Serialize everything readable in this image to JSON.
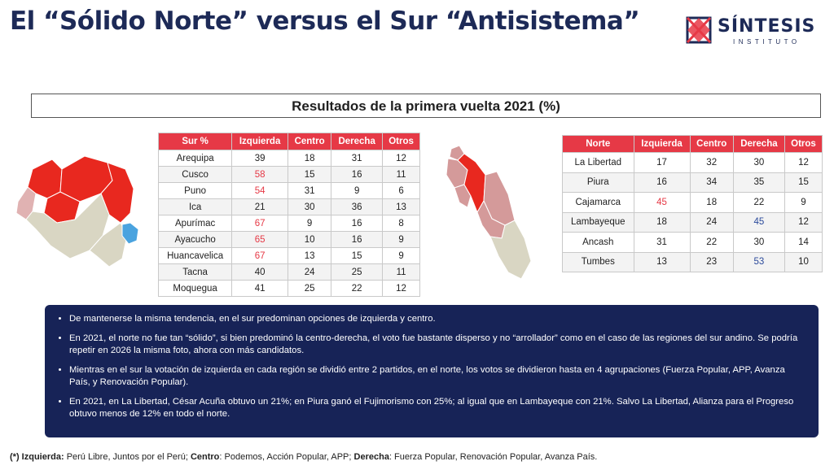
{
  "header": {
    "title": "El “Sólido Norte” versus el Sur “Antisistema”",
    "logo_name": "SÍNTESIS",
    "logo_sub": "INSTITUTO"
  },
  "subtitle": "Resultados de la primera vuelta 2021 (%)",
  "colors": {
    "accent": "#e63946",
    "navy": "#172357",
    "highlight_blue": "#2b4a9b"
  },
  "south_table": {
    "headers": [
      "Sur %",
      "Izquierda",
      "Centro",
      "Derecha",
      "Otros"
    ],
    "rows": [
      [
        "Arequipa",
        "39",
        "18",
        "31",
        "12"
      ],
      [
        "Cusco",
        "58",
        "15",
        "16",
        "11"
      ],
      [
        "Puno",
        "54",
        "31",
        "9",
        "6"
      ],
      [
        "Ica",
        "21",
        "30",
        "36",
        "13"
      ],
      [
        "Apurímac",
        "67",
        "9",
        "16",
        "8"
      ],
      [
        "Ayacucho",
        "65",
        "10",
        "16",
        "9"
      ],
      [
        "Huancavelica",
        "67",
        "13",
        "15",
        "9"
      ],
      [
        "Tacna",
        "40",
        "24",
        "25",
        "11"
      ],
      [
        "Moquegua",
        "41",
        "25",
        "22",
        "12"
      ]
    ]
  },
  "north_table": {
    "headers": [
      "Norte",
      "Izquierda",
      "Centro",
      "Derecha",
      "Otros"
    ],
    "rows": [
      [
        "La Libertad",
        "17",
        "32",
        "30",
        "12"
      ],
      [
        "Piura",
        "16",
        "34",
        "35",
        "15"
      ],
      [
        "Cajamarca",
        "45",
        "18",
        "22",
        "9"
      ],
      [
        "Lambayeque",
        "18",
        "24",
        "45",
        "12"
      ],
      [
        "Ancash",
        "31",
        "22",
        "30",
        "14"
      ],
      [
        "Tumbes",
        "13",
        "23",
        "53",
        "10"
      ]
    ]
  },
  "notes": [
    "De mantenerse la misma tendencia, en el sur predominan opciones de izquierda y centro.",
    "En 2021, el norte no fue tan “sólido”, si bien predominó la centro-derecha, el voto fue bastante disperso y no “arrollador” como en el caso de las regiones del sur andino. Se podría repetir en 2026 la misma foto, ahora con más candidatos.",
    "Mientras en el sur la votación de izquierda en cada región se dividió entre 2 partidos, en el norte, los votos se dividieron hasta en 4 agrupaciones (Fuerza Popular, APP, Avanza País, y Renovación Popular).",
    "En 2021, en La Libertad, César Acuña obtuvo un 21%; en Piura ganó el Fujimorismo con 25%; al igual que en Lambayeque con 21%. Salvo La Libertad, Alianza para el Progreso obtuvo menos de 12% en todo el norte."
  ],
  "footnote": {
    "mark": "(*)",
    "izq_label": "Izquierda:",
    "izq_text": "Perú Libre, Juntos por el Perú;",
    "cen_label": "Centro",
    "cen_text": ": Podemos, Acción Popular, APP;",
    "der_label": "Derecha",
    "der_text": ": Fuerza Popular, Renovación Popular, Avanza País."
  }
}
